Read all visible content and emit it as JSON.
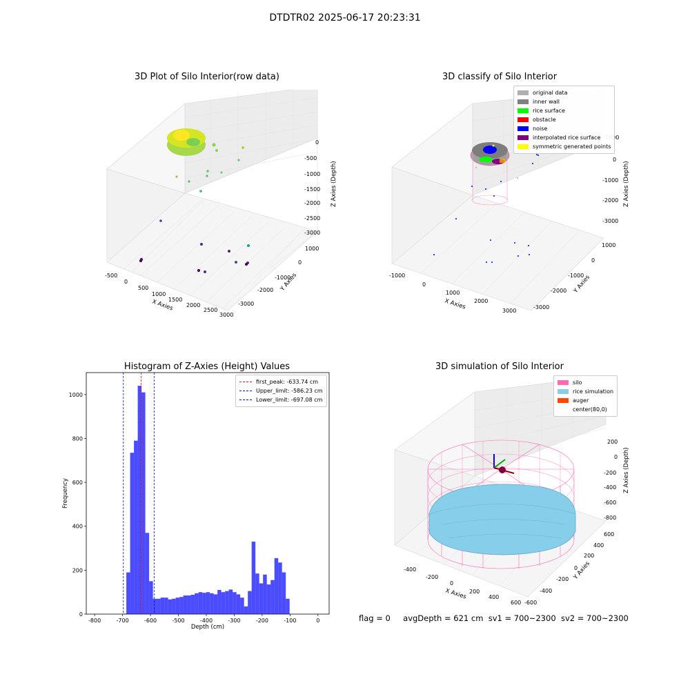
{
  "suptitle": "DTDTR02 2025-06-17 20:23:31",
  "panels": {
    "raw": {
      "title": "3D Plot of Silo Interior(row data)",
      "xlabel": "X Axies",
      "ylabel": "Y Axies",
      "zlabel": "Z Axies (Depth)",
      "x_ticks": [
        "-500",
        "0",
        "500",
        "1000",
        "1500",
        "2000",
        "2500",
        "3000"
      ],
      "y_ticks": [
        "1000",
        "0",
        "-1000",
        "-2000",
        "-3000"
      ],
      "z_ticks": [
        "0",
        "-500",
        "-1000",
        "-1500",
        "-2000",
        "-2500",
        "-3000"
      ]
    },
    "classify": {
      "title": "3D classify of Silo Interior",
      "xlabel": "X Axies",
      "ylabel": "Y Axies",
      "zlabel": "Z Axies (Depth)",
      "x_ticks": [
        "-1000",
        "0",
        "1000",
        "2000",
        "3000"
      ],
      "y_ticks": [
        "1000",
        "0",
        "-1000",
        "-2000",
        "-3000"
      ],
      "z_ticks": [
        "1000",
        "0",
        "-1000",
        "-2000",
        "-3000"
      ],
      "legend": [
        {
          "label": "original data",
          "color": "#b0b0b0"
        },
        {
          "label": "inner wall",
          "color": "#808080"
        },
        {
          "label": "rice surface",
          "color": "#00ff00"
        },
        {
          "label": "obstacle",
          "color": "#ff0000"
        },
        {
          "label": "noise",
          "color": "#0000ff"
        },
        {
          "label": "interpolated rice surface",
          "color": "#800080"
        },
        {
          "label": "symmetric generated points",
          "color": "#ffff00"
        }
      ]
    },
    "simulation": {
      "title": "3D simulation of Silo Interior",
      "xlabel": "X Axies",
      "ylabel": "Y Axies",
      "zlabel": "Z Axies (Depth)",
      "x_ticks": [
        "-400",
        "-200",
        "0",
        "200",
        "400",
        "600"
      ],
      "y_ticks": [
        "600",
        "400",
        "200",
        "0",
        "-200",
        "-400",
        "-600"
      ],
      "z_ticks": [
        "200",
        "0",
        "-200",
        "-400",
        "-600",
        "-800"
      ],
      "legend": [
        {
          "label": "silo",
          "color": "#ff69b4"
        },
        {
          "label": "rice simulation",
          "color": "#87ceeb"
        },
        {
          "label": "auger",
          "color": "#ff4500"
        },
        {
          "label": "center(80,0)",
          "color": ""
        }
      ]
    }
  },
  "chart_data": [
    {
      "type": "bar",
      "title": "Histogram of Z-Axies (Height) Values",
      "xlabel": "Depth (cm)",
      "ylabel": "Frequency",
      "xlim": [
        -830,
        40
      ],
      "ylim": [
        0,
        1100
      ],
      "x_ticks": [
        -800,
        -700,
        -600,
        -500,
        -400,
        -300,
        -200,
        -100,
        0
      ],
      "y_ticks": [
        0,
        200,
        400,
        600,
        800,
        1000
      ],
      "bar_color": "#0000ff",
      "bin_width": 13.6,
      "bin_starts": [
        -700,
        -686.4,
        -672.8,
        -659.2,
        -645.6,
        -632,
        -618.4,
        -604.8,
        -591.2,
        -577.6,
        -564,
        -550.4,
        -536.8,
        -523.2,
        -509.6,
        -496,
        -482.4,
        -468.8,
        -455.2,
        -441.6,
        -428,
        -414.4,
        -400.8,
        -387.2,
        -373.6,
        -360,
        -346.4,
        -332.8,
        -319.2,
        -305.6,
        -292,
        -278.4,
        -264.8,
        -251.2,
        -237.6,
        -224,
        -210.4,
        -196.8,
        -183.2,
        -169.6,
        -156,
        -142.4,
        -128.8,
        -115.2,
        -101.6,
        -88,
        -74.4,
        -60.8,
        -47.2,
        -33.6,
        -20,
        -6.4
      ],
      "values": [
        2,
        190,
        735,
        790,
        1040,
        1010,
        370,
        150,
        70,
        70,
        75,
        75,
        67,
        70,
        75,
        78,
        85,
        85,
        88,
        95,
        100,
        97,
        100,
        95,
        90,
        110,
        100,
        105,
        112,
        100,
        90,
        75,
        35,
        105,
        330,
        185,
        140,
        180,
        135,
        155,
        255,
        235,
        190,
        70,
        0,
        0,
        0,
        0,
        0,
        0,
        0,
        0
      ],
      "lines": [
        {
          "label": "first_peak: -633.74 cm",
          "value": -633.74,
          "color": "#ff0000"
        },
        {
          "label": "Upper_limit: -586.23 cm",
          "value": -586.23,
          "color": "#0000ff"
        },
        {
          "label": "Lower_limit: -697.08 cm",
          "value": -697.08,
          "color": "#0000ff"
        }
      ],
      "legend_position": "top-right"
    }
  ],
  "status": {
    "flag": "flag = 0",
    "avg": "avgDepth = 621 cm",
    "sv1": "sv1 = 700~2300",
    "sv2": "sv2 = 700~2300"
  }
}
